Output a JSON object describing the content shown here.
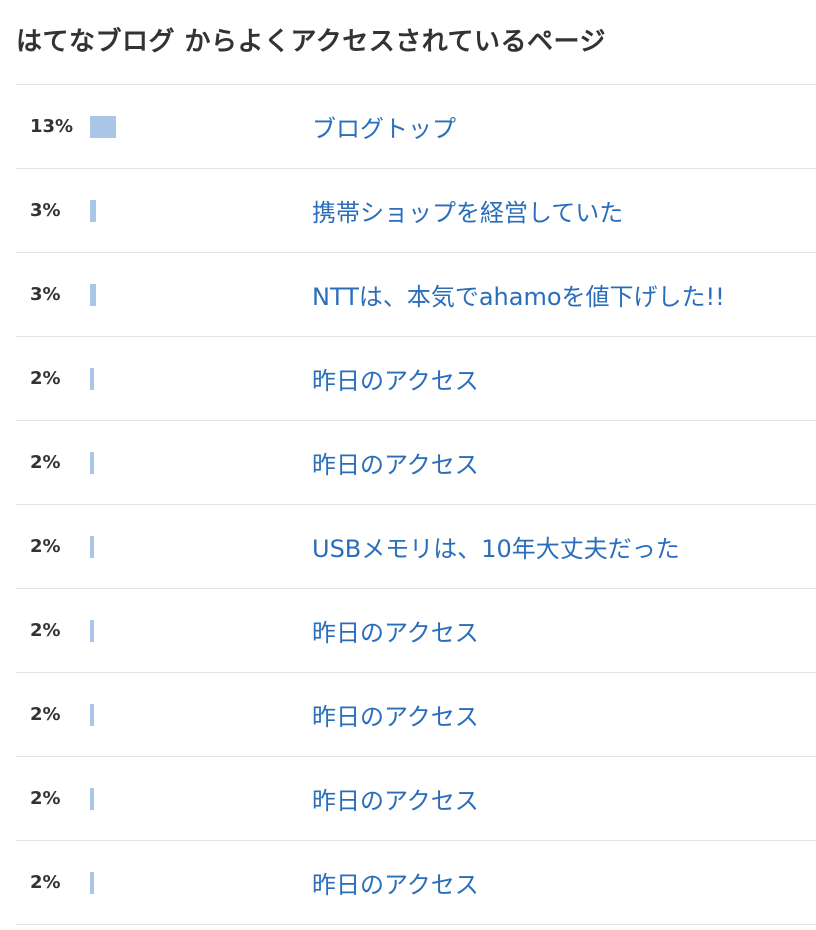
{
  "title": "はてなブログ からよくアクセスされているページ",
  "colors": {
    "bar": "#a9c6e6",
    "link": "#2a6ebb",
    "text": "#333333",
    "divider": "#e5e5e5"
  },
  "rows": [
    {
      "percent_label": "13%",
      "percent": 13,
      "page_title": "ブログトップ"
    },
    {
      "percent_label": "3%",
      "percent": 3,
      "page_title": "携帯ショップを経営していた"
    },
    {
      "percent_label": "3%",
      "percent": 3,
      "page_title": "NTTは、本気でahamoを値下げした!!"
    },
    {
      "percent_label": "2%",
      "percent": 2,
      "page_title": "昨日のアクセス"
    },
    {
      "percent_label": "2%",
      "percent": 2,
      "page_title": "昨日のアクセス"
    },
    {
      "percent_label": "2%",
      "percent": 2,
      "page_title": "USBメモリは、10年大丈夫だった"
    },
    {
      "percent_label": "2%",
      "percent": 2,
      "page_title": "昨日のアクセス"
    },
    {
      "percent_label": "2%",
      "percent": 2,
      "page_title": "昨日のアクセス"
    },
    {
      "percent_label": "2%",
      "percent": 2,
      "page_title": "昨日のアクセス"
    },
    {
      "percent_label": "2%",
      "percent": 2,
      "page_title": "昨日のアクセス"
    }
  ]
}
